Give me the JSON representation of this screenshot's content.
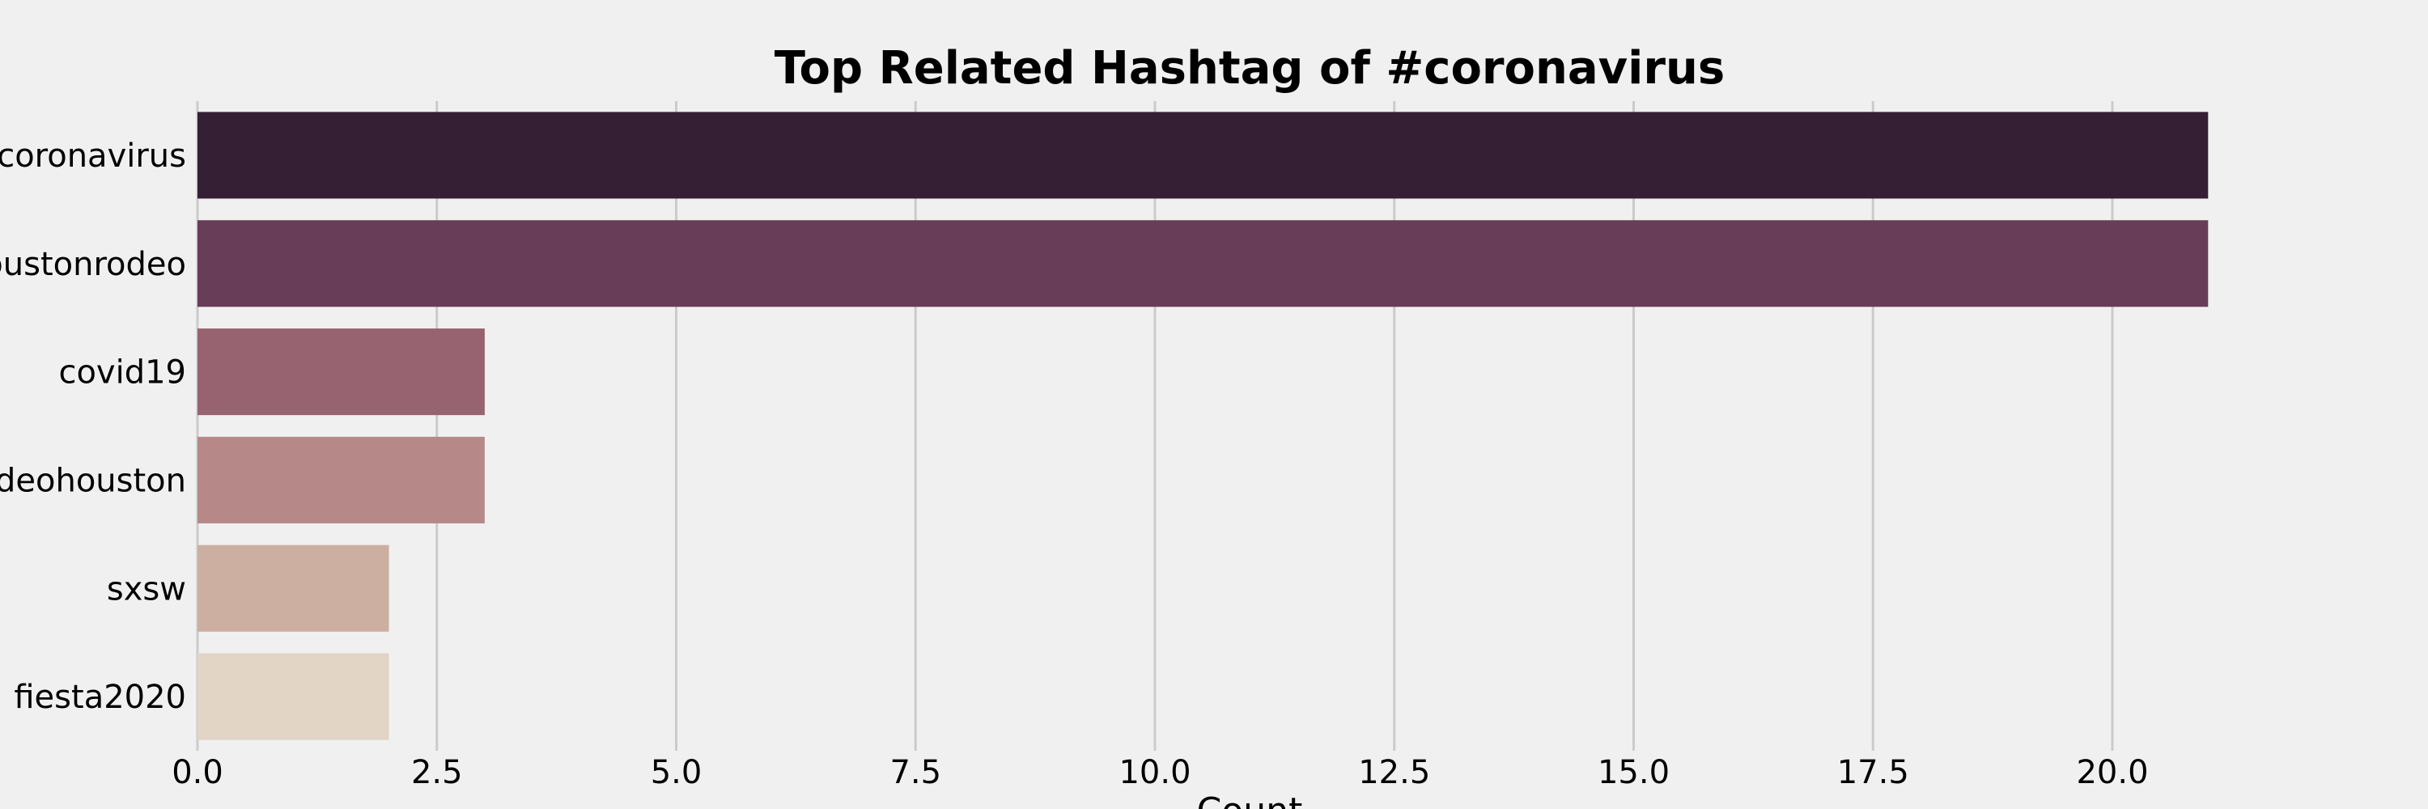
{
  "chart_data": {
    "type": "bar",
    "orientation": "horizontal",
    "title": "Top Related Hashtag of #coronavirus",
    "xlabel": "Count",
    "ylabel": "",
    "categories": [
      "coronavirus",
      "houstonrodeo",
      "covid19",
      "rodeohouston",
      "sxsw",
      "fiesta2020"
    ],
    "values": [
      21,
      21,
      3,
      3,
      2,
      2
    ],
    "colors": [
      "#351f35",
      "#673d58",
      "#976370",
      "#b68988",
      "#cdafa1",
      "#e2d5c6"
    ],
    "xlim": [
      0,
      23.2
    ],
    "xticks": [
      "0.0",
      "2.5",
      "5.0",
      "7.5",
      "10.0",
      "12.5",
      "15.0",
      "17.5",
      "20.0"
    ],
    "grid": "vertical"
  }
}
